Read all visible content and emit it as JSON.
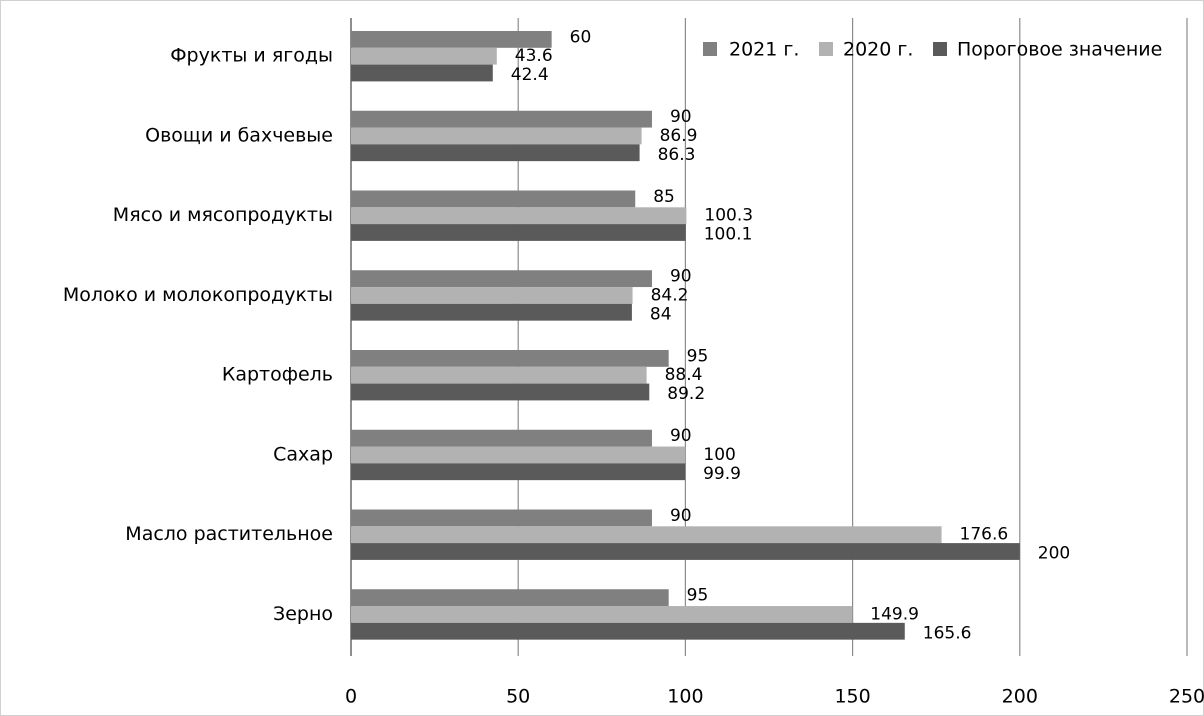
{
  "chart_data": {
    "type": "hbar",
    "categories": [
      "Фрукты и ягоды",
      "Овощи и бахчевые",
      "Мясо и мясопродукты",
      "Молоко и молокопродукты",
      "Картофель",
      "Сахар",
      "Масло растительное",
      "Зерно"
    ],
    "series": [
      {
        "name": "2021 г.",
        "color": "#808080",
        "values": [
          60,
          90,
          85,
          90,
          95,
          90,
          90,
          95
        ]
      },
      {
        "name": "2020 г.",
        "color": "#b2b2b2",
        "values": [
          43.6,
          86.9,
          100.3,
          84.2,
          88.4,
          100,
          176.6,
          149.9
        ]
      },
      {
        "name": "Пороговое значение",
        "color": "#5a5a5a",
        "values": [
          42.4,
          86.3,
          100.1,
          84,
          89.2,
          99.9,
          200,
          165.6
        ]
      }
    ],
    "xlim": [
      0,
      250
    ],
    "xticks": [
      0,
      50,
      100,
      150,
      200,
      250
    ],
    "grid": true,
    "legend": "top-right"
  }
}
